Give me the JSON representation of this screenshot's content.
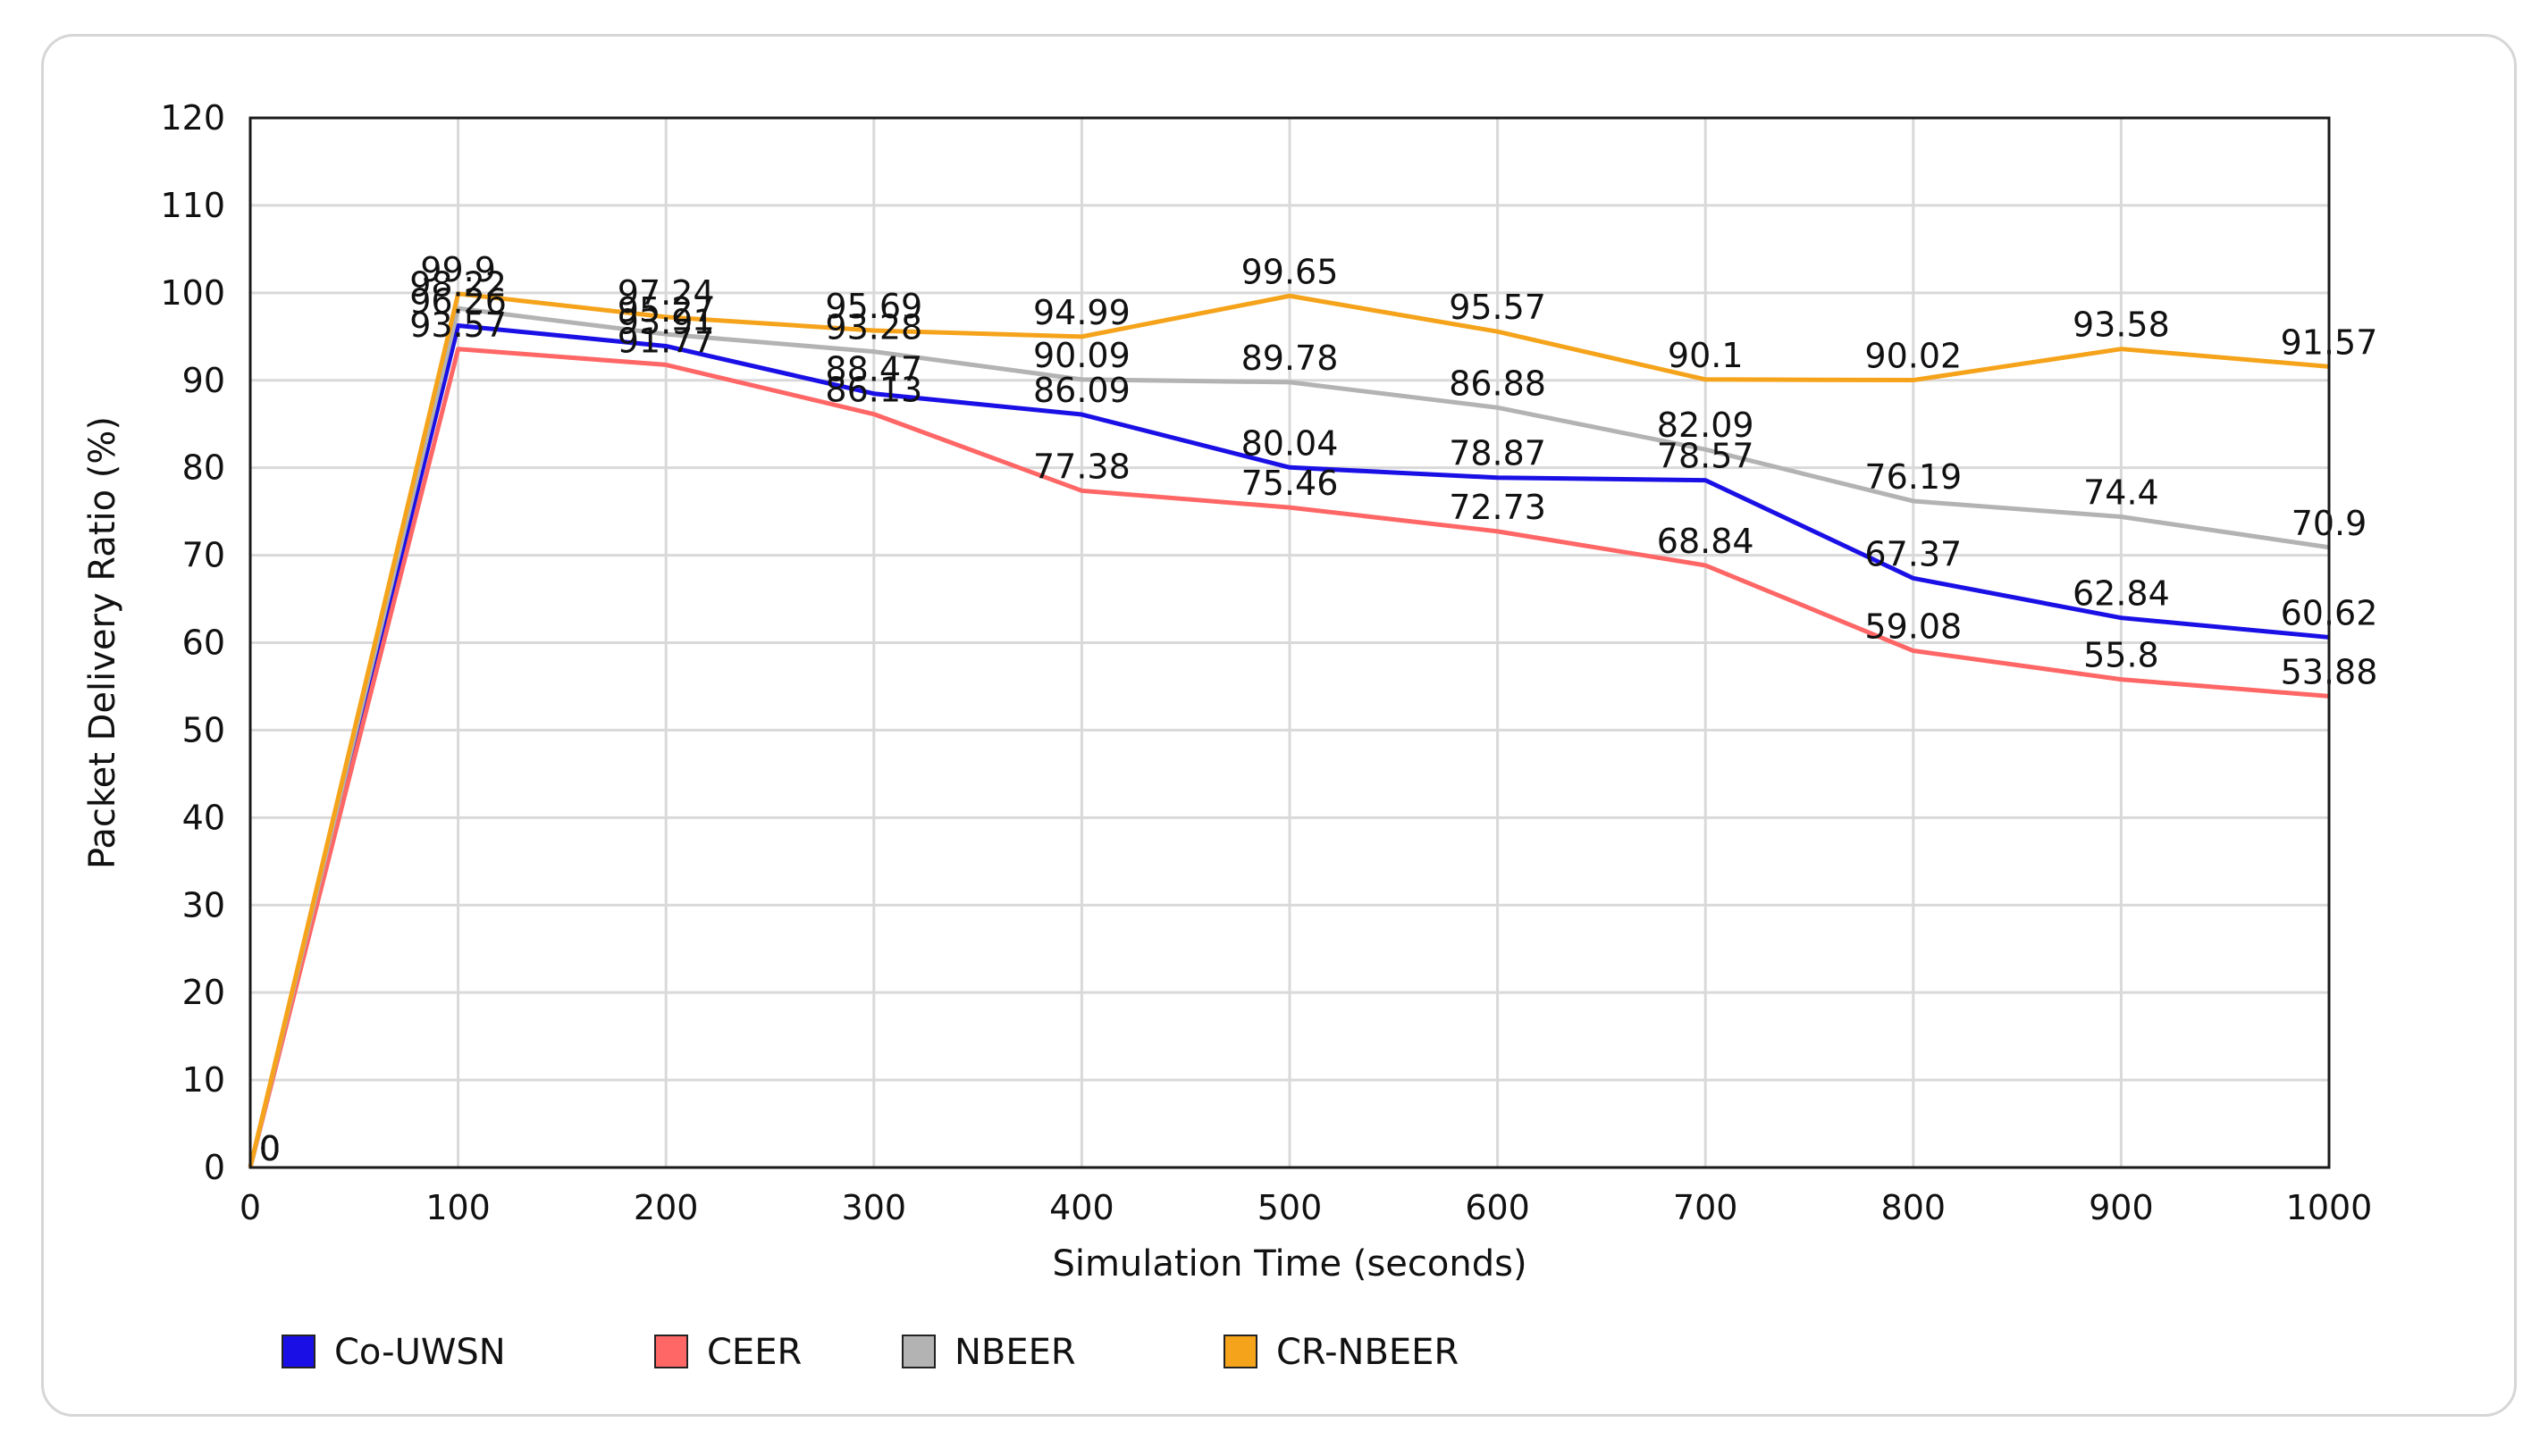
{
  "chart_data": {
    "type": "line",
    "title": "",
    "xlabel": "Simulation Time (seconds)",
    "ylabel": "Packet Delivery Ratio (%)",
    "x": [
      0,
      100,
      200,
      300,
      400,
      500,
      600,
      700,
      800,
      900,
      1000
    ],
    "xlim": [
      0,
      1000
    ],
    "ylim": [
      0,
      120
    ],
    "x_ticks": [
      0,
      100,
      200,
      300,
      400,
      500,
      600,
      700,
      800,
      900,
      1000
    ],
    "y_ticks": [
      0,
      10,
      20,
      30,
      40,
      50,
      60,
      70,
      80,
      90,
      100,
      110,
      120
    ],
    "grid": true,
    "legend_position": "bottom-left",
    "series": [
      {
        "name": "Co-UWSN",
        "color": "#1a10e6",
        "values": [
          0,
          96.26,
          93.91,
          88.47,
          86.09,
          80.04,
          78.87,
          78.57,
          67.37,
          62.84,
          60.62
        ]
      },
      {
        "name": "CEER",
        "color": "#ff6666",
        "values": [
          0,
          93.57,
          91.77,
          86.13,
          77.38,
          75.46,
          72.73,
          68.84,
          59.08,
          55.8,
          53.88
        ]
      },
      {
        "name": "NBEER",
        "color": "#b3b3b3",
        "values": [
          0,
          98.22,
          95.27,
          93.28,
          90.09,
          89.78,
          86.88,
          82.09,
          76.19,
          74.4,
          70.9
        ]
      },
      {
        "name": "CR-NBEER",
        "color": "#f5a31a",
        "values": [
          0,
          99.9,
          97.24,
          95.69,
          94.99,
          99.65,
          95.57,
          90.1,
          90.02,
          93.58,
          91.57
        ]
      }
    ]
  }
}
